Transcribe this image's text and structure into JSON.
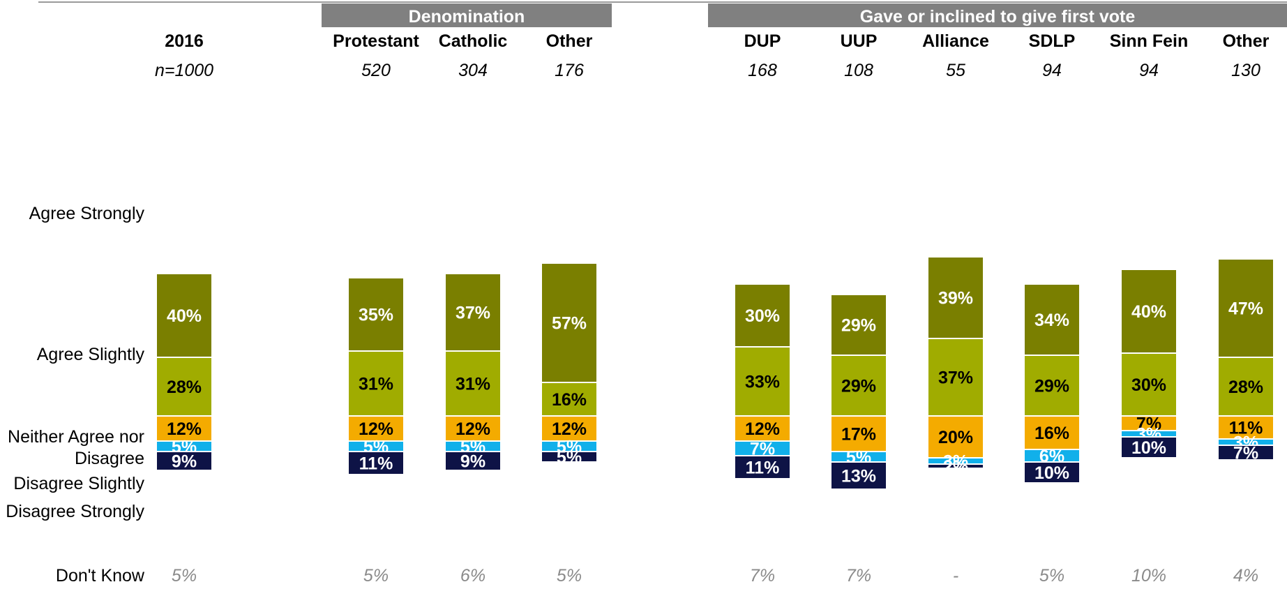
{
  "colors": {
    "agree_strongly": "#7a7f00",
    "agree_slightly": "#a0ac00",
    "neither": "#f4ab00",
    "disagree_slightly": "#11b0ea",
    "disagree_strongly": "#0e1346",
    "group_header_bg": "#808080",
    "dont_know_text": "#8a8a8a"
  },
  "group_headers": {
    "denomination": "Denomination",
    "first_vote": "Gave or inclined to give first vote"
  },
  "row_labels": {
    "agree_strongly": "Agree Strongly",
    "agree_slightly": "Agree Slightly",
    "neither_line1": "Neither Agree nor",
    "neither_line2": "Disagree",
    "disagree_slightly": "Disagree Slightly",
    "disagree_strongly": "Disagree Strongly",
    "dont_know": "Don't Know"
  },
  "chart_data": {
    "type": "bar",
    "stacked": true,
    "diverging": true,
    "categories": [
      "2016",
      "Protestant",
      "Catholic",
      "Other",
      "DUP",
      "UUP",
      "Alliance",
      "SDLP",
      "Sinn Fein",
      "Other"
    ],
    "sample_sizes": [
      "n=1000",
      "520",
      "304",
      "176",
      "168",
      "108",
      "55",
      "94",
      "94",
      "130"
    ],
    "series": [
      {
        "name": "Agree Strongly",
        "values": [
          40,
          35,
          37,
          57,
          30,
          29,
          39,
          34,
          40,
          47
        ],
        "labels": [
          "40%",
          "35%",
          "37%",
          "57%",
          "30%",
          "29%",
          "39%",
          "34%",
          "40%",
          "47%"
        ]
      },
      {
        "name": "Agree Slightly",
        "values": [
          28,
          31,
          31,
          16,
          33,
          29,
          37,
          29,
          30,
          28
        ],
        "labels": [
          "28%",
          "31%",
          "31%",
          "16%",
          "33%",
          "29%",
          "37%",
          "29%",
          "30%",
          "28%"
        ]
      },
      {
        "name": "Neither Agree nor Disagree",
        "values": [
          12,
          12,
          12,
          12,
          12,
          17,
          20,
          16,
          7,
          11
        ],
        "labels": [
          "12%",
          "12%",
          "12%",
          "12%",
          "12%",
          "17%",
          "20%",
          "16%",
          "7%",
          "11%"
        ]
      },
      {
        "name": "Disagree Slightly",
        "values": [
          5,
          5,
          5,
          5,
          7,
          5,
          3,
          6,
          3,
          3
        ],
        "labels": [
          "5%",
          "5%",
          "5%",
          "5%",
          "7%",
          "5%",
          "3%",
          "6%",
          "3%",
          "3%"
        ]
      },
      {
        "name": "Disagree Strongly",
        "values": [
          9,
          11,
          9,
          5,
          11,
          13,
          2,
          10,
          10,
          7
        ],
        "labels": [
          "9%",
          "11%",
          "9%",
          "5%",
          "11%",
          "13%",
          "2%",
          "10%",
          "10%",
          "7%"
        ]
      }
    ],
    "dont_know": [
      "5%",
      "5%",
      "6%",
      "5%",
      "7%",
      "7%",
      "-",
      "5%",
      "10%",
      "4%"
    ]
  }
}
